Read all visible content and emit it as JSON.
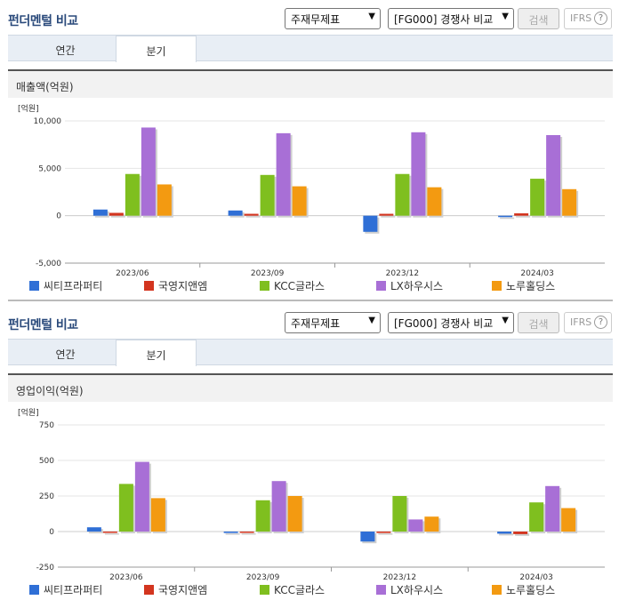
{
  "section_title": "펀더멘털 비교",
  "statement_select": "주재무제표",
  "compare_select": "[FG000] 경쟁사 비교",
  "search_label": "검색",
  "ifrs_label": "IFRS",
  "help_symbol": "?",
  "tabs": [
    {
      "label": "연간"
    },
    {
      "label": "분기"
    }
  ],
  "legend": [
    {
      "name": "씨티프라퍼티",
      "color": "#2f6fd6"
    },
    {
      "name": "국영지앤엠",
      "color": "#d3351f"
    },
    {
      "name": "KCC글라스",
      "color": "#7fbf1f"
    },
    {
      "name": "LX하우시스",
      "color": "#a86fd6"
    },
    {
      "name": "노루홀딩스",
      "color": "#f39a11"
    }
  ],
  "chart_data": [
    {
      "type": "bar",
      "title": "매출액(억원)",
      "unit": "[억원]",
      "categories": [
        "2023/06",
        "2023/09",
        "2023/12",
        "2024/03"
      ],
      "ylim": [
        -5000,
        10000
      ],
      "yticks": [
        10000,
        5000,
        0,
        -5000
      ],
      "ytick_labels": [
        "10,000",
        "5,000",
        "0",
        "-5,000"
      ],
      "series": [
        {
          "name": "씨티프라퍼티",
          "values": [
            650,
            550,
            -1700,
            -150
          ]
        },
        {
          "name": "국영지앤엠",
          "values": [
            300,
            200,
            200,
            250
          ]
        },
        {
          "name": "KCC글라스",
          "values": [
            4400,
            4300,
            4400,
            3900
          ]
        },
        {
          "name": "LX하우시스",
          "values": [
            9300,
            8700,
            8800,
            8500
          ]
        },
        {
          "name": "노루홀딩스",
          "values": [
            3300,
            3100,
            3000,
            2800
          ]
        }
      ]
    },
    {
      "type": "bar",
      "title": "영업이익(억원)",
      "unit": "[억원]",
      "categories": [
        "2023/06",
        "2023/09",
        "2023/12",
        "2024/03"
      ],
      "ylim": [
        -250,
        750
      ],
      "yticks": [
        750,
        500,
        250,
        0,
        -250
      ],
      "ytick_labels": [
        "750",
        "500",
        "250",
        "0",
        "-250"
      ],
      "series": [
        {
          "name": "씨티프라퍼티",
          "values": [
            30,
            -10,
            -70,
            -15
          ]
        },
        {
          "name": "국영지앤엠",
          "values": [
            -8,
            0,
            -10,
            -18
          ]
        },
        {
          "name": "KCC글라스",
          "values": [
            335,
            220,
            250,
            205
          ]
        },
        {
          "name": "LX하우시스",
          "values": [
            490,
            355,
            85,
            320
          ]
        },
        {
          "name": "노루홀딩스",
          "values": [
            235,
            250,
            105,
            165
          ]
        }
      ]
    }
  ]
}
